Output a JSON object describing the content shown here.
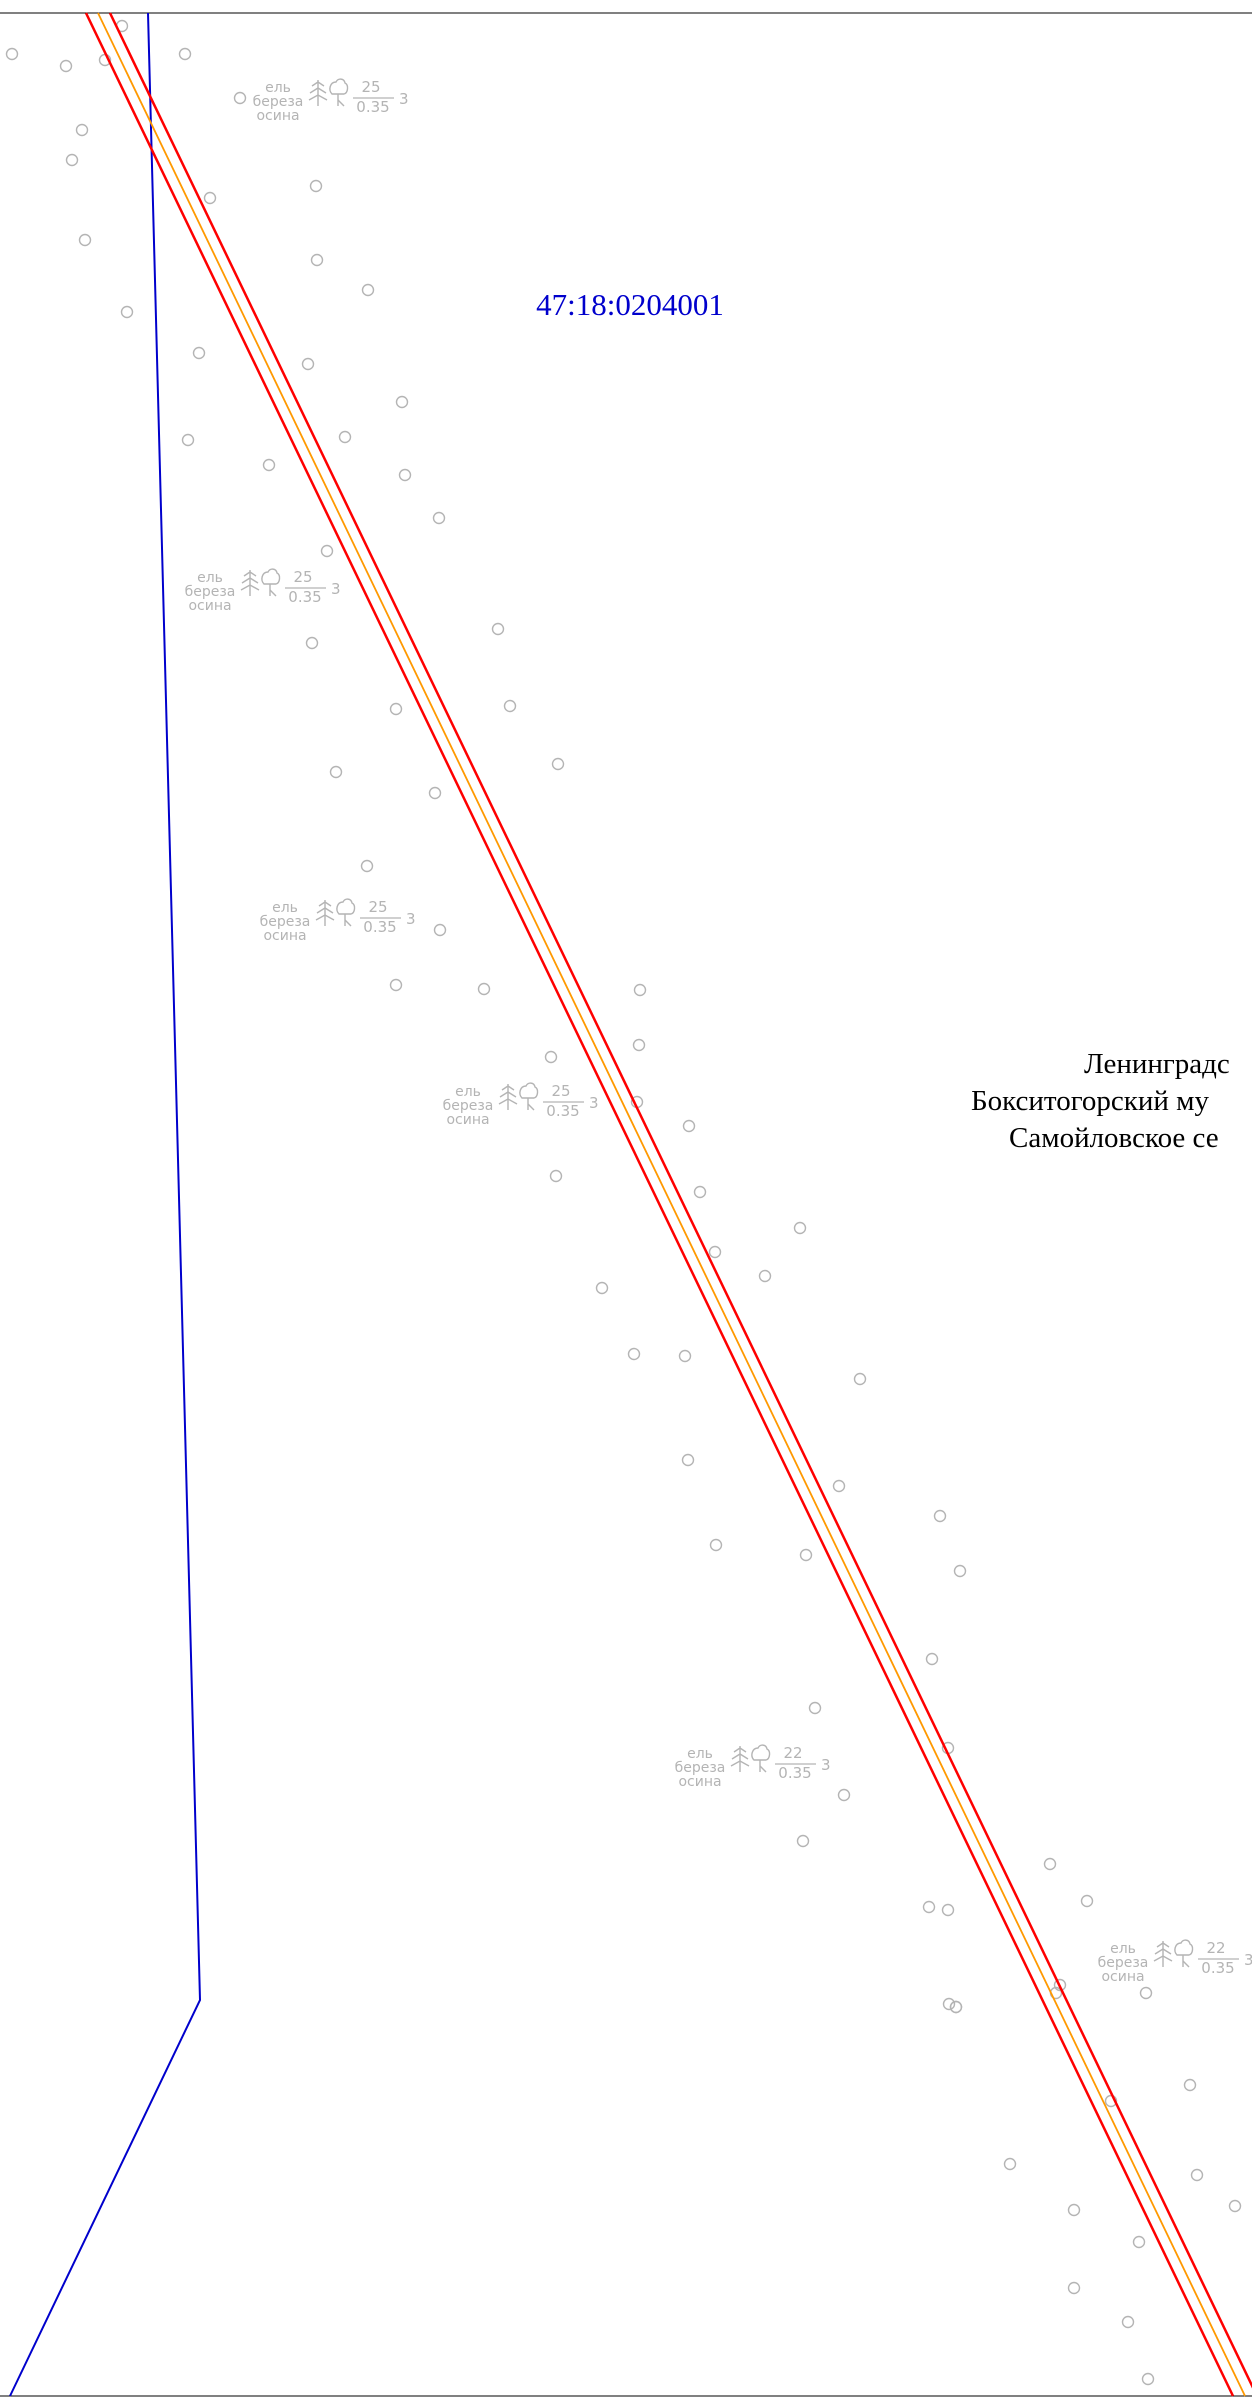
{
  "cadastral_number": "47:18:0204001",
  "admin_labels": [
    "Ленинградс",
    "Бокситогорский му",
    "Самойловское се"
  ],
  "forest_labels": [
    {
      "species": [
        "ель",
        "береза",
        "осина"
      ],
      "height": "25",
      "diameter": "0.35",
      "density": "3"
    },
    {
      "species": [
        "ель",
        "береза",
        "осина"
      ],
      "height": "25",
      "diameter": "0.35",
      "density": "3"
    },
    {
      "species": [
        "ель",
        "береза",
        "осина"
      ],
      "height": "25",
      "diameter": "0.35",
      "density": "3"
    },
    {
      "species": [
        "ель",
        "береза",
        "осина"
      ],
      "height": "25",
      "diameter": "0.35",
      "density": "3"
    },
    {
      "species": [
        "ель",
        "береза",
        "осина"
      ],
      "height": "22",
      "diameter": "0.35",
      "density": "3"
    },
    {
      "species": [
        "ель",
        "береза",
        "осина"
      ],
      "height": "22",
      "diameter": "0.35",
      "density": "3"
    }
  ],
  "colors": {
    "cadastral_boundary": "#0000cc",
    "road_edge": "#ff0000",
    "road_axis": "#ff9900",
    "forest_symbols": "#b4b4b4",
    "frame": "#000000"
  },
  "symbols": {
    "conifer": "conifer-icon",
    "deciduous": "deciduous-icon",
    "tree_point": "tree-point-icon"
  }
}
